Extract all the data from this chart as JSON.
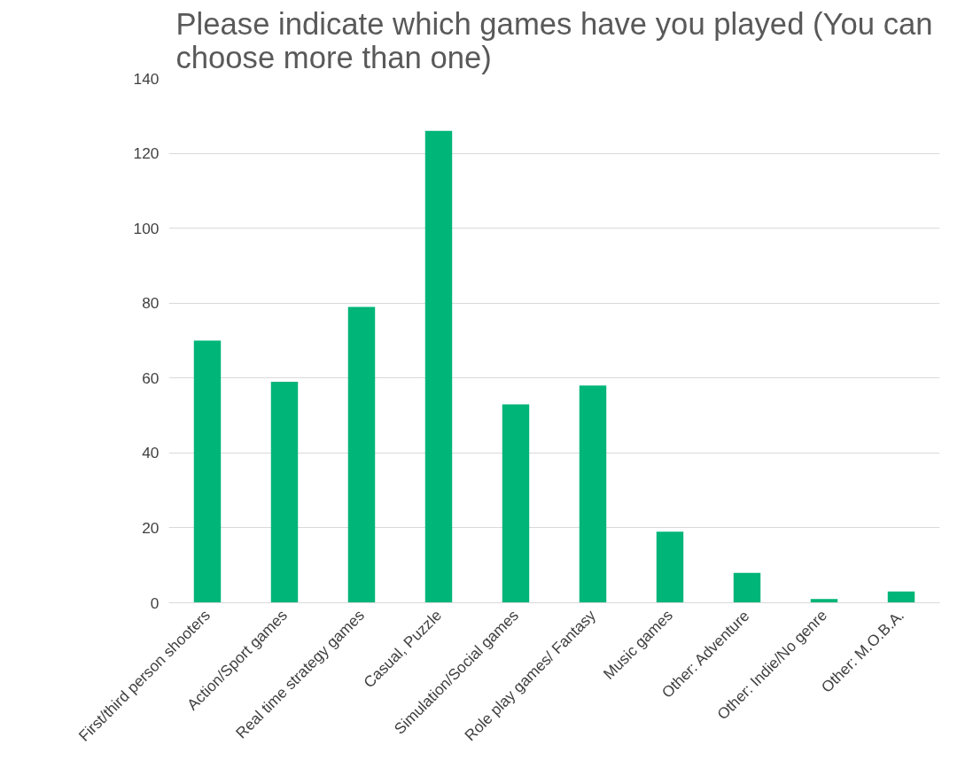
{
  "chart_data": {
    "type": "bar",
    "title": "Please indicate which games have you played (You can choose more than one)",
    "categories": [
      "First/third person shooters",
      "Action/Sport games",
      "Real time strategy games",
      "Casual, Puzzle",
      "Simulation/Social games",
      "Role play games/ Fantasy",
      "Music games",
      "Other: Adventure",
      "Other: Indie/No genre",
      "Other: M.O.B.A."
    ],
    "values": [
      70,
      59,
      79,
      126,
      53,
      58,
      19,
      8,
      1,
      3
    ],
    "color": "#00b578",
    "ylim": [
      0,
      140
    ],
    "yticks": [
      0,
      20,
      40,
      60,
      80,
      100,
      120,
      140
    ],
    "grid": "y"
  }
}
